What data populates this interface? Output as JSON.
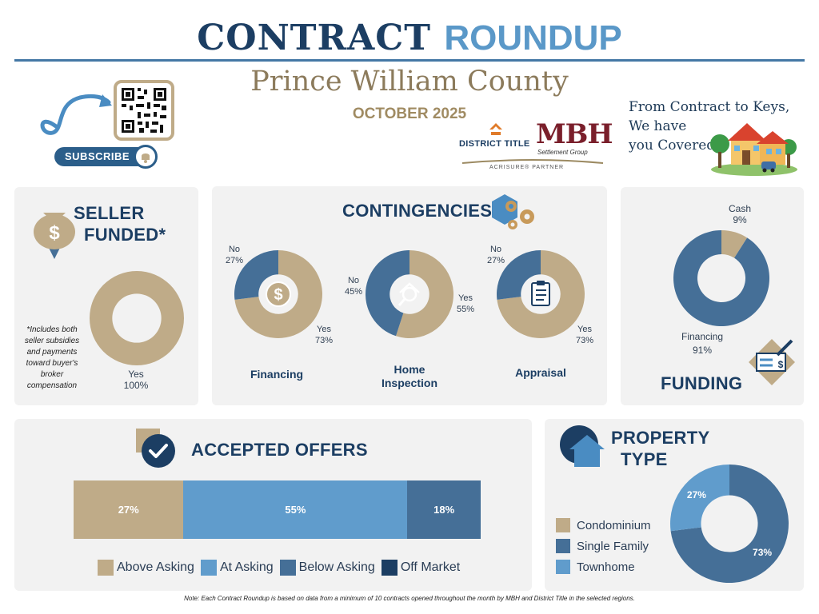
{
  "header": {
    "title_main": "CONTRACT",
    "title_accent": "ROUNDUP",
    "county": "Prince William County",
    "month": "OCTOBER 2025",
    "tagline": [
      "From Contract to Keys,",
      "We have",
      "you Covered"
    ],
    "subscribe_label": "SUBSCRIBE"
  },
  "logos": {
    "district_title": "DISTRICT TITLE",
    "mbh": "MBH",
    "mbh_sub": "Settlement Group",
    "partner": "ACRISURE® PARTNER"
  },
  "colors": {
    "tan": "#bfab88",
    "steel_blue": "#456f97",
    "light_blue": "#609ccc",
    "navy": "#1c3e63"
  },
  "sections": {
    "seller_funded": {
      "title_line1": "SELLER",
      "title_line2": "FUNDED*",
      "note": "*Includes both seller subsidies and payments toward buyer's broker compensation"
    },
    "contingencies": {
      "title": "CONTINGENCIES"
    },
    "funding": {
      "title": "FUNDING"
    },
    "accepted_offers": {
      "title": "ACCEPTED OFFERS"
    },
    "property_type": {
      "title_line1": "PROPERTY",
      "title_line2": "TYPE"
    }
  },
  "footnote": "Note: Each Contract Roundup is based on data from a minimum of 10 contracts opened throughout the month by MBH and District Title in the selected regions.",
  "chart_data": [
    {
      "type": "pie",
      "id": "seller_funded",
      "slices": [
        {
          "label": "Yes",
          "value": 100,
          "display": "100%"
        }
      ]
    },
    {
      "type": "pie",
      "id": "financing_contingency",
      "caption": "Financing",
      "slices": [
        {
          "label": "Yes",
          "value": 73,
          "display": "73%"
        },
        {
          "label": "No",
          "value": 27,
          "display": "27%"
        }
      ]
    },
    {
      "type": "pie",
      "id": "home_inspection_contingency",
      "caption_line1": "Home",
      "caption_line2": "Inspection",
      "slices": [
        {
          "label": "Yes",
          "value": 55,
          "display": "55%"
        },
        {
          "label": "No",
          "value": 45,
          "display": "45%"
        }
      ]
    },
    {
      "type": "pie",
      "id": "appraisal_contingency",
      "caption": "Appraisal",
      "slices": [
        {
          "label": "Yes",
          "value": 73,
          "display": "73%"
        },
        {
          "label": "No",
          "value": 27,
          "display": "27%"
        }
      ]
    },
    {
      "type": "pie",
      "id": "funding",
      "slices": [
        {
          "label": "Cash",
          "value": 9,
          "display": "9%"
        },
        {
          "label": "Financing",
          "value": 91,
          "display": "91%"
        }
      ]
    },
    {
      "type": "bar",
      "id": "accepted_offers",
      "orientation": "stacked-horizontal",
      "categories": [
        "Above Asking",
        "At Asking",
        "Below Asking",
        "Off Market"
      ],
      "values": [
        27,
        55,
        18,
        0
      ],
      "display": [
        "27%",
        "55%",
        "18%",
        ""
      ],
      "legend_position": "bottom"
    },
    {
      "type": "pie",
      "id": "property_type",
      "legend": [
        "Condominium",
        "Single Family",
        "Townhome"
      ],
      "slices": [
        {
          "label": "Condominium",
          "value": 0,
          "display": ""
        },
        {
          "label": "Single Family",
          "value": 73,
          "display": "73%"
        },
        {
          "label": "Townhome",
          "value": 27,
          "display": "27%"
        }
      ],
      "legend_position": "left"
    }
  ]
}
